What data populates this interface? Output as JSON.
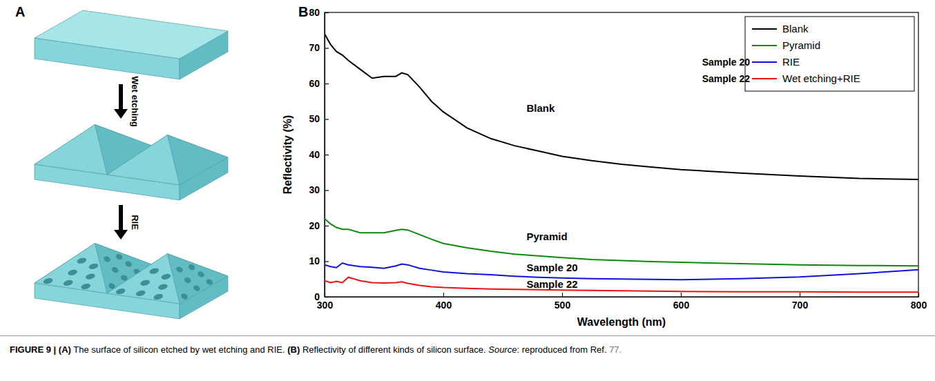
{
  "panels": [
    "A",
    "B"
  ],
  "diagram": {
    "steps": [
      "Wet etching",
      "RIE"
    ]
  },
  "caption": {
    "label": "FIGURE 9 |",
    "a_label": "(A)",
    "a_text": "The surface of silicon etched by wet etching and RIE.",
    "b_label": "(B)",
    "b_text": "Reflectivity of different kinds of silicon surface.",
    "source_label": "Source",
    "source_text": ": reproduced from Ref.",
    "ref": "77."
  },
  "chart_data": {
    "type": "line",
    "x_label": "Wavelength (nm)",
    "y_label": "Reflectivity (%)",
    "x": [
      300,
      305,
      310,
      315,
      320,
      330,
      340,
      350,
      360,
      365,
      370,
      380,
      390,
      400,
      420,
      440,
      460,
      480,
      500,
      525,
      550,
      575,
      600,
      650,
      700,
      750,
      800
    ],
    "series": [
      {
        "name": "Blank",
        "color": "#000000",
        "values": [
          74,
          71,
          69,
          68,
          66.5,
          64,
          61.5,
          62,
          62,
          63,
          62.5,
          59,
          55,
          52,
          47.5,
          44.5,
          42.5,
          41,
          39.5,
          38.3,
          37.3,
          36.5,
          35.8,
          34.8,
          34,
          33.3,
          33
        ]
      },
      {
        "name": "Pyramid",
        "color": "#0a8a0a",
        "values": [
          22,
          20.5,
          19.5,
          19,
          19,
          18,
          18,
          18,
          18.7,
          19,
          18.8,
          17.5,
          16.2,
          15,
          13.8,
          12.8,
          12,
          11.5,
          11,
          10.5,
          10.2,
          9.9,
          9.7,
          9.3,
          9,
          8.8,
          8.7
        ]
      },
      {
        "name": "RIE",
        "sample": "Sample 20",
        "color": "#1010e0",
        "values": [
          9,
          8.5,
          8.2,
          9.5,
          9,
          8.5,
          8.3,
          8,
          8.7,
          9.2,
          9,
          8,
          7.5,
          7,
          6.5,
          6.2,
          5.8,
          5.5,
          5.3,
          5.1,
          5,
          4.9,
          4.8,
          5.1,
          5.6,
          6.5,
          7.6
        ]
      },
      {
        "name": "Wet etching+RIE",
        "sample": "Sample 22",
        "color": "#ee1111",
        "values": [
          4.5,
          4,
          4.3,
          4,
          5.5,
          4.5,
          4,
          3.9,
          4,
          4.2,
          3.8,
          3.2,
          2.8,
          2.6,
          2.4,
          2.2,
          2.1,
          2,
          1.9,
          1.8,
          1.7,
          1.6,
          1.5,
          1.4,
          1.4,
          1.3,
          1.3
        ]
      }
    ],
    "annotations": [
      {
        "text": "Blank",
        "x": 470,
        "y": 52
      },
      {
        "text": "Pyramid",
        "x": 470,
        "y": 16
      },
      {
        "text": "Sample 20",
        "x": 470,
        "y": 7.2
      },
      {
        "text": "Sample 22",
        "x": 470,
        "y": 2.6
      }
    ],
    "xlim": [
      300,
      800
    ],
    "xticks": [
      300,
      400,
      500,
      600,
      700,
      800
    ],
    "ylim": [
      0,
      80
    ],
    "yticks": [
      0,
      10,
      20,
      30,
      40,
      50,
      60,
      70,
      80
    ],
    "grid": false,
    "legend": "top-right"
  }
}
